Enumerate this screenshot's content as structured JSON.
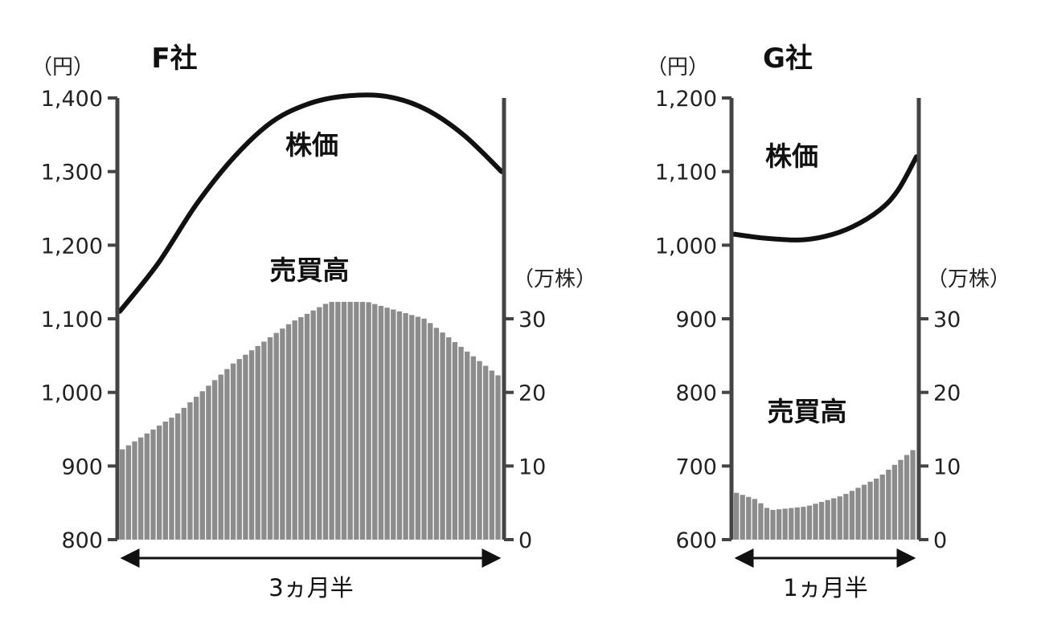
{
  "chart_data": [
    {
      "type": "line+bar",
      "title": "F社",
      "left_axis": {
        "unit": "（円）",
        "ylim": [
          800,
          1400
        ],
        "ticks": [
          "800",
          "900",
          "1,000",
          "1,100",
          "1,200",
          "1,300",
          "1,400"
        ]
      },
      "right_axis": {
        "unit": "（万株）",
        "ylim": [
          0,
          60
        ],
        "ticks": [
          "0",
          "10",
          "20",
          "30"
        ]
      },
      "line": {
        "name": "株価",
        "x": [
          0,
          0.1,
          0.2,
          0.3,
          0.4,
          0.5,
          0.6,
          0.7,
          0.8,
          0.9,
          1.0
        ],
        "values": [
          1110,
          1175,
          1255,
          1320,
          1368,
          1393,
          1403,
          1402,
          1385,
          1350,
          1300
        ]
      },
      "bars": {
        "name": "売買高",
        "count": 62,
        "curve_x": [
          0,
          0.15,
          0.3,
          0.45,
          0.55,
          0.65,
          0.8,
          1.0
        ],
        "curve_values": [
          12,
          17,
          24,
          29.5,
          32.3,
          32.3,
          30,
          22
        ]
      },
      "duration": "3ヵ月半",
      "annotations": {
        "price": "株価",
        "volume": "売買高"
      },
      "color": "#8c8c8c"
    },
    {
      "type": "line+bar",
      "title": "G社",
      "left_axis": {
        "unit": "（円）",
        "ylim": [
          600,
          1200
        ],
        "ticks": [
          "600",
          "700",
          "800",
          "900",
          "1,000",
          "1,100",
          "1,200"
        ]
      },
      "right_axis": {
        "unit": "（万株）",
        "ylim": [
          0,
          60
        ],
        "ticks": [
          "0",
          "10",
          "20",
          "30"
        ]
      },
      "line": {
        "name": "株価",
        "x": [
          0,
          0.15,
          0.35,
          0.5,
          0.65,
          0.8,
          0.9,
          1.0
        ],
        "values": [
          1015,
          1010,
          1007,
          1012,
          1025,
          1048,
          1075,
          1120
        ]
      },
      "bars": {
        "name": "売買高",
        "count": 30,
        "curve_x": [
          0,
          0.12,
          0.2,
          0.4,
          0.6,
          0.8,
          1.0
        ],
        "curve_values": [
          6.5,
          5.5,
          4,
          4.5,
          6,
          8.5,
          12.5
        ]
      },
      "duration": "1ヵ月半",
      "annotations": {
        "price": "株価",
        "volume": "売買高"
      },
      "color": "#8c8c8c"
    }
  ]
}
